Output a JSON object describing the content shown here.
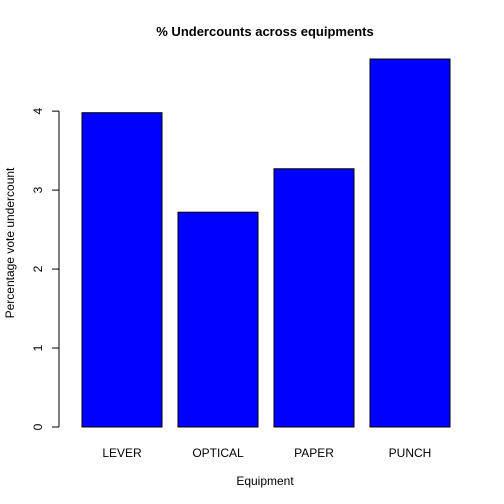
{
  "chart_data": {
    "type": "bar",
    "title": "% Undercounts across equipments",
    "xlabel": "Equipment",
    "ylabel": "Percentage vote undercount",
    "categories": [
      "LEVER",
      "OPTICAL",
      "PAPER",
      "PUNCH"
    ],
    "values": [
      3.98,
      2.72,
      3.27,
      4.66
    ],
    "ylim": [
      0,
      4.66
    ],
    "yticks": [
      0,
      1,
      2,
      3,
      4
    ],
    "grid": false,
    "bar_color": "#0000ff",
    "bar_border_color": "#000000"
  }
}
